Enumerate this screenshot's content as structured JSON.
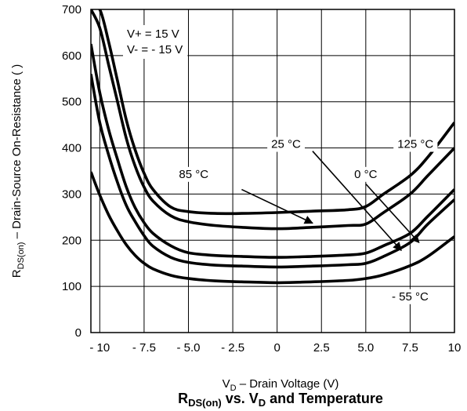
{
  "chart_data": {
    "type": "line",
    "title_main": "R",
    "title_sub": "DS(on)",
    "title_mid": " vs. V",
    "title_sub2": "D",
    "title_end": " and Temperature",
    "xlabel_main": "V",
    "xlabel_sub": "D",
    "xlabel_end": " – Drain Voltage (V)",
    "ylabel_main": "R",
    "ylabel_sub": "DS(on)",
    "ylabel_end": " – Drain-Source On-Resistance (  )",
    "xlim": [
      -10.5,
      10
    ],
    "ylim": [
      0,
      700
    ],
    "xticks": [
      -10,
      -7.5,
      -5,
      -2.5,
      0,
      2.5,
      5,
      7.5,
      10
    ],
    "xtick_labels": [
      "- 10",
      "- 7.5",
      "- 5.0",
      "- 2.5",
      "0",
      "2.5",
      "5.0",
      "7.5",
      "10"
    ],
    "yticks": [
      0,
      100,
      200,
      300,
      400,
      500,
      600,
      700
    ],
    "ytick_labels": [
      "0",
      "100",
      "200",
      "300",
      "400",
      "500",
      "600",
      "700"
    ],
    "grid": true,
    "conditions": [
      "V+ = 15 V",
      "V- = - 15 V"
    ],
    "series": [
      {
        "name": "125 °C",
        "x": [
          -10.5,
          -10,
          -9.5,
          -9,
          -8.5,
          -8,
          -7.5,
          -7,
          -6,
          -5,
          -3.5,
          -2,
          0,
          2,
          4,
          5,
          6,
          7.5,
          8.5,
          10
        ],
        "y": [
          700,
          700,
          630,
          545,
          460,
          395,
          345,
          310,
          272,
          262,
          258,
          258,
          260,
          263,
          266,
          273,
          300,
          340,
          380,
          455
        ]
      },
      {
        "name": "85 °C",
        "x": [
          -10.5,
          -10,
          -9.5,
          -9,
          -8.5,
          -8,
          -7.5,
          -7,
          -6,
          -5,
          -3.5,
          -2,
          0,
          2,
          4,
          5,
          6,
          7.5,
          8.5,
          10
        ],
        "y": [
          700,
          660,
          580,
          500,
          420,
          360,
          315,
          285,
          253,
          240,
          232,
          228,
          225,
          228,
          232,
          235,
          260,
          300,
          340,
          400
        ]
      },
      {
        "name": "25 °C",
        "x": [
          -10.5,
          -10,
          -9.5,
          -9,
          -8.5,
          -8,
          -7.5,
          -7,
          -6,
          -5,
          -3.5,
          -2,
          0,
          2,
          4,
          5,
          6,
          7.5,
          8.5,
          10
        ],
        "y": [
          625,
          520,
          440,
          375,
          315,
          270,
          238,
          215,
          188,
          173,
          167,
          165,
          163,
          165,
          168,
          172,
          188,
          215,
          252,
          310
        ]
      },
      {
        "name": "0 °C",
        "x": [
          -10.5,
          -10,
          -9.5,
          -9,
          -8.5,
          -8,
          -7.5,
          -7,
          -6,
          -5,
          -3.5,
          -2,
          0,
          2,
          4,
          5,
          6,
          7.5,
          8.5,
          10
        ],
        "y": [
          560,
          455,
          385,
          325,
          275,
          240,
          210,
          187,
          163,
          152,
          146,
          144,
          142,
          144,
          147,
          150,
          165,
          195,
          235,
          288
        ]
      },
      {
        "name": "- 55 °C",
        "x": [
          -10.5,
          -10,
          -9.5,
          -9,
          -8.5,
          -8,
          -7.5,
          -7,
          -6,
          -5,
          -3.5,
          -2,
          0,
          2,
          4,
          5,
          6,
          7.5,
          8.5,
          10
        ],
        "y": [
          348,
          298,
          255,
          220,
          190,
          167,
          150,
          138,
          124,
          117,
          112,
          110,
          108,
          110,
          113,
          117,
          125,
          145,
          165,
          208
        ]
      }
    ],
    "annotations": [
      {
        "text": "125 °C",
        "x": 7.8,
        "y": 400
      },
      {
        "text": "85 °C",
        "x": -4.7,
        "y": 335
      },
      {
        "text": "25 °C",
        "x": 0.5,
        "y": 400
      },
      {
        "text": "0 °C",
        "x": 5.0,
        "y": 335
      },
      {
        "text": "- 55 °C",
        "x": 7.5,
        "y": 70
      }
    ],
    "arrows": [
      {
        "from": [
          -2.0,
          310
        ],
        "to": [
          2.0,
          237
        ]
      },
      {
        "from": [
          2.0,
          393
        ],
        "to": [
          7.0,
          178
        ]
      },
      {
        "from": [
          5.0,
          322
        ],
        "to": [
          8.0,
          195
        ]
      }
    ]
  }
}
